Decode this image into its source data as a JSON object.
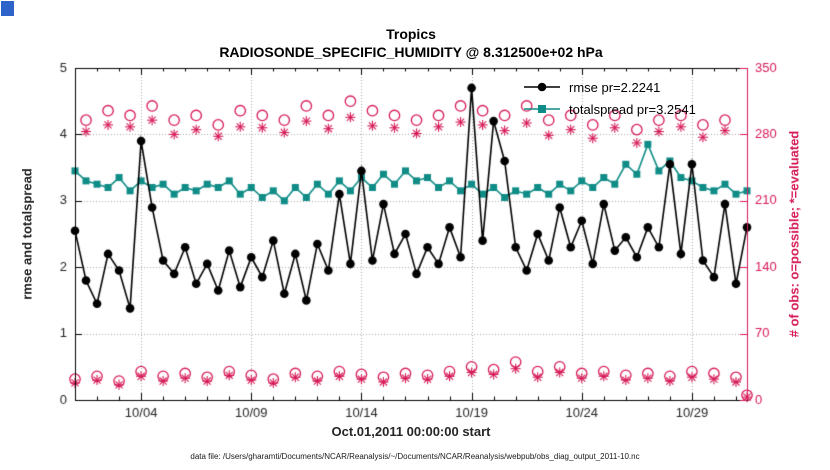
{
  "window_artifact": {
    "color": "#2e63c9"
  },
  "chart_data": {
    "type": "line",
    "title": "Tropics",
    "subtitle": "RADIOSONDE_SPECIFIC_HUMIDITY @ 8.312500e+02 hPa",
    "xlabel": "Oct.01,2011 00:00:00 start",
    "ylabel_left": "rmse and totalspread",
    "ylabel_right": "# of obs: o=possible; *=evaluated",
    "footer": "data file: /Users/gharamti/Documents/NCAR/Reanalysis/~/Documents/NCAR/Reanalysis/webpub/obs_diag_output_2011-10.nc",
    "grid": true,
    "legend_position": "upper-center-right",
    "right_axis_color": "#d61a56",
    "grid_color": "#aaaaaa",
    "xlim": [
      1,
      31.5
    ],
    "ylim_left": [
      0,
      5
    ],
    "yticks_left": [
      0,
      1,
      2,
      3,
      4,
      5
    ],
    "ylim_right": [
      0,
      350
    ],
    "yticks_right": [
      0,
      70,
      140,
      210,
      280,
      350
    ],
    "xticks": [
      {
        "value": 4,
        "label": "10/04"
      },
      {
        "value": 9,
        "label": "10/09"
      },
      {
        "value": 14,
        "label": "10/14"
      },
      {
        "value": 19,
        "label": "10/19"
      },
      {
        "value": 24,
        "label": "10/24"
      },
      {
        "value": 29,
        "label": "10/29"
      }
    ],
    "x": [
      1,
      1.5,
      2,
      2.5,
      3,
      3.5,
      4,
      4.5,
      5,
      5.5,
      6,
      6.5,
      7,
      7.5,
      8,
      8.5,
      9,
      9.5,
      10,
      10.5,
      11,
      11.5,
      12,
      12.5,
      13,
      13.5,
      14,
      14.5,
      15,
      15.5,
      16,
      16.5,
      17,
      17.5,
      18,
      18.5,
      19,
      19.5,
      20,
      20.5,
      21,
      21.5,
      22,
      22.5,
      23,
      23.5,
      24,
      24.5,
      25,
      25.5,
      26,
      26.5,
      27,
      27.5,
      28,
      28.5,
      29,
      29.5,
      30,
      30.5,
      31,
      31.5
    ],
    "series": [
      {
        "name": "rmse pr=2.2241",
        "axis": "left",
        "color": "#000000",
        "marker": "filled-circle",
        "line": true,
        "values": [
          2.55,
          1.8,
          1.45,
          2.2,
          1.95,
          1.38,
          3.9,
          2.9,
          2.1,
          1.9,
          2.3,
          1.75,
          2.05,
          1.65,
          2.25,
          1.7,
          2.15,
          1.85,
          2.4,
          1.6,
          2.2,
          1.5,
          2.35,
          1.95,
          3.1,
          2.05,
          3.45,
          2.1,
          2.95,
          2.2,
          2.5,
          1.9,
          2.3,
          2.05,
          2.6,
          2.15,
          4.7,
          2.4,
          4.2,
          3.6,
          2.3,
          1.95,
          2.5,
          2.1,
          2.9,
          2.3,
          2.7,
          2.05,
          2.95,
          2.25,
          2.45,
          2.15,
          2.6,
          2.3,
          3.55,
          2.2,
          3.55,
          2.1,
          1.85,
          2.95,
          1.75,
          2.6
        ]
      },
      {
        "name": "totalspread pr=3.2541",
        "axis": "left",
        "color": "#108c87",
        "marker": "filled-square",
        "line": true,
        "values": [
          3.45,
          3.3,
          3.25,
          3.2,
          3.35,
          3.15,
          3.3,
          3.2,
          3.25,
          3.1,
          3.2,
          3.15,
          3.25,
          3.2,
          3.3,
          3.1,
          3.2,
          3.05,
          3.15,
          3.0,
          3.2,
          3.05,
          3.25,
          3.1,
          3.3,
          3.15,
          3.35,
          3.2,
          3.4,
          3.25,
          3.45,
          3.3,
          3.35,
          3.2,
          3.3,
          3.15,
          3.25,
          3.1,
          3.2,
          3.05,
          3.15,
          3.1,
          3.2,
          3.1,
          3.25,
          3.15,
          3.3,
          3.2,
          3.35,
          3.25,
          3.55,
          3.4,
          3.85,
          3.45,
          3.6,
          3.35,
          3.3,
          3.2,
          3.15,
          3.25,
          3.1,
          3.15
        ]
      },
      {
        "name": "possible",
        "axis": "right",
        "color": "#d61a56",
        "marker": "open-circle",
        "line": false,
        "values": [
          22,
          295,
          25,
          305,
          20,
          300,
          30,
          310,
          25,
          295,
          28,
          300,
          24,
          290,
          30,
          305,
          26,
          300,
          22,
          295,
          28,
          310,
          25,
          300,
          30,
          315,
          27,
          305,
          24,
          300,
          28,
          295,
          26,
          300,
          30,
          310,
          35,
          305,
          32,
          300,
          40,
          310,
          30,
          295,
          35,
          300,
          28,
          290,
          30,
          300,
          26,
          285,
          28,
          295,
          25,
          300,
          30,
          290,
          28,
          295,
          24,
          5
        ]
      },
      {
        "name": "evaluated",
        "axis": "right",
        "color": "#d61a56",
        "marker": "asterisk",
        "line": false,
        "values": [
          18,
          283,
          21,
          290,
          16,
          288,
          25,
          295,
          20,
          280,
          23,
          285,
          20,
          278,
          26,
          288,
          21,
          287,
          18,
          282,
          24,
          294,
          20,
          286,
          25,
          298,
          22,
          289,
          19,
          287,
          23,
          281,
          22,
          288,
          25,
          293,
          29,
          290,
          27,
          284,
          33,
          292,
          24,
          279,
          29,
          285,
          23,
          276,
          25,
          287,
          21,
          271,
          23,
          283,
          20,
          288,
          24,
          277,
          22,
          284,
          19,
          3
        ]
      }
    ]
  }
}
